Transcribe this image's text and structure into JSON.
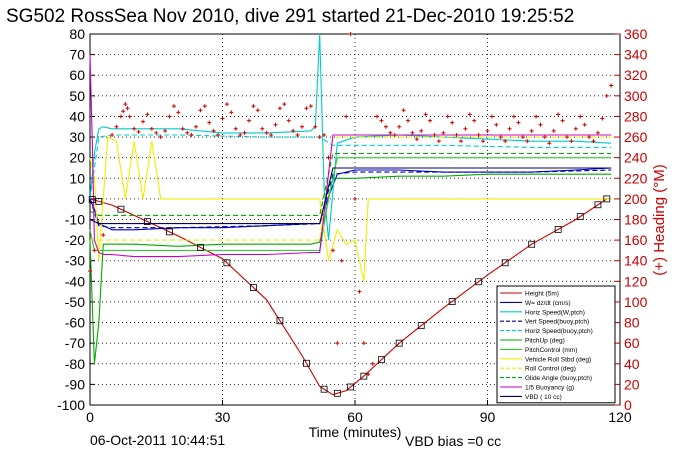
{
  "chart_data": {
    "type": "line",
    "title": "SG502 RossSea Nov 2010, dive 291 started 21-Dec-2010 19:25:52",
    "xlabel": "Time (minutes)",
    "ylabel_right": "(+) Heading (°M)",
    "footer_date": "06-Oct-2011 10:44:51",
    "footer_vbd": "VBD bias =0 cc",
    "xlim": [
      0,
      120
    ],
    "ylim": [
      -100,
      80
    ],
    "y2lim": [
      0,
      360
    ],
    "xticks": [
      0,
      30,
      60,
      90,
      120
    ],
    "yticks": [
      -100,
      -90,
      -80,
      -70,
      -60,
      -50,
      -40,
      -30,
      -20,
      -10,
      0,
      10,
      20,
      30,
      40,
      50,
      60,
      70,
      80
    ],
    "y2ticks": [
      0,
      20,
      40,
      60,
      80,
      100,
      120,
      140,
      160,
      180,
      200,
      220,
      240,
      260,
      280,
      300,
      320,
      340,
      360
    ],
    "grid": true,
    "legend_position": "bottom-right",
    "series": [
      {
        "name": "Height (5m)",
        "color": "#cc0000",
        "style": "solid",
        "x": [
          0,
          5,
          10,
          20,
          30,
          40,
          48,
          52,
          55,
          58,
          62,
          70,
          80,
          90,
          100,
          110,
          117,
          118
        ],
        "y": [
          0,
          -3,
          -8,
          -18,
          -29,
          -49,
          -76,
          -91,
          -95,
          -93,
          -86,
          -70,
          -53,
          -37,
          -22,
          -10,
          0,
          0
        ]
      },
      {
        "name": "W= dz/dt (cm/s)",
        "color": "#0000cc",
        "style": "solid",
        "x": [
          0,
          1,
          2,
          5,
          10,
          20,
          30,
          40,
          50,
          52,
          54,
          56,
          60,
          70,
          80,
          90,
          100,
          110,
          118
        ],
        "y": [
          0,
          -5,
          -12,
          -15,
          -15,
          -14,
          -14,
          -13,
          -12,
          -12,
          1,
          12,
          14,
          14,
          13,
          13,
          13,
          14,
          15
        ]
      },
      {
        "name": "Horiz Speed(W,ptch)",
        "color": "#00cccc",
        "style": "solid",
        "x": [
          0,
          1,
          2,
          3,
          5,
          10,
          20,
          30,
          40,
          50,
          51,
          52,
          53,
          54,
          56,
          60,
          70,
          80,
          90,
          100,
          110,
          118
        ],
        "y": [
          0,
          22,
          34,
          35,
          34,
          34,
          34,
          32,
          32,
          33,
          35,
          80,
          5,
          -20,
          27,
          30,
          31,
          30,
          29,
          28,
          28,
          27
        ]
      },
      {
        "name": "Vert Speed(buoy,ptch)",
        "color": "#000099",
        "style": "dashed",
        "x": [
          0,
          2,
          5,
          20,
          40,
          52,
          55,
          60,
          80,
          100,
          118
        ],
        "y": [
          0,
          -13,
          -14,
          -14,
          -13,
          -12,
          12,
          13,
          13,
          13,
          14
        ]
      },
      {
        "name": "Horiz Speed(buoy,ptch)",
        "color": "#00cccc",
        "style": "dashed",
        "x": [
          0,
          2,
          5,
          20,
          40,
          52,
          55,
          60,
          80,
          100,
          118
        ],
        "y": [
          0,
          30,
          31,
          31,
          30,
          30,
          26,
          26,
          26,
          25,
          25
        ]
      },
      {
        "name": "PitchUp (deg)",
        "color": "#00aa00",
        "style": "solid",
        "x": [
          0,
          1,
          2,
          3,
          5,
          10,
          20,
          30,
          40,
          50,
          52,
          55,
          60,
          70,
          80,
          90,
          100,
          110,
          118
        ],
        "y": [
          -20,
          -80,
          -60,
          -22,
          -22,
          -22,
          -23,
          -22,
          -22,
          -22,
          -21,
          10,
          10,
          11,
          11,
          12,
          12,
          12,
          12
        ]
      },
      {
        "name": "PitchControl (mm)",
        "color": "#33cc33",
        "style": "solid",
        "x": [
          0,
          1,
          3,
          5,
          52,
          54,
          56,
          60,
          80,
          100,
          118
        ],
        "y": [
          -15,
          -25,
          -25,
          -25,
          -25,
          0,
          20,
          20,
          20,
          20,
          20
        ]
      },
      {
        "name": "Vehicle Roll Stbd (deg)",
        "color": "#eeee00",
        "style": "solid",
        "x": [
          0,
          1,
          2,
          4,
          6,
          8,
          10,
          12,
          14,
          16,
          52,
          54,
          56,
          58,
          60,
          62,
          63,
          64,
          66,
          70,
          80,
          90,
          100,
          110,
          118
        ],
        "y": [
          20,
          10,
          -30,
          30,
          28,
          0,
          28,
          0,
          28,
          0,
          0,
          -30,
          -15,
          -22,
          -20,
          -40,
          0,
          0,
          0,
          0,
          0,
          0,
          0,
          0,
          0
        ]
      },
      {
        "name": "Roll Control (deg)",
        "color": "#eeee00",
        "style": "dashed",
        "x": [
          0,
          52,
          55,
          118
        ],
        "y": [
          -20,
          -20,
          30,
          30
        ]
      },
      {
        "name": "Glide Angle (buoy,ptch)",
        "color": "#00aa00",
        "style": "dashed",
        "x": [
          0,
          2,
          5,
          20,
          40,
          52,
          55,
          60,
          80,
          100,
          118
        ],
        "y": [
          -6,
          -8,
          -8,
          -8,
          -8,
          -8,
          22,
          22,
          22,
          22,
          22
        ]
      },
      {
        "name": "1/5 Buoyancy (g)",
        "color": "#cc00cc",
        "style": "solid",
        "x": [
          0,
          0.5,
          1,
          2,
          3,
          5,
          10,
          20,
          30,
          40,
          50,
          52,
          55,
          60,
          70,
          80,
          90,
          100,
          110,
          118
        ],
        "y": [
          70,
          30,
          -20,
          -26,
          -27,
          -27,
          -28,
          -28,
          -27,
          -27,
          -26,
          -26,
          31,
          31,
          31,
          31,
          31,
          31,
          31,
          31
        ]
      },
      {
        "name": "VBD ( 10 cc)",
        "color": "#000066",
        "style": "solid",
        "x": [
          0,
          2,
          52,
          55,
          118
        ],
        "y": [
          -10,
          -12,
          -12,
          15,
          15
        ]
      }
    ],
    "heading_series": {
      "name": "(+) Heading",
      "color": "#cc0000",
      "marker": "+",
      "axis": "right",
      "x": [
        0,
        1,
        3,
        5,
        6,
        7,
        7.5,
        8,
        8.5,
        9,
        10,
        11,
        12,
        13,
        14,
        15,
        16,
        17,
        18,
        19,
        20,
        21,
        22,
        23,
        24,
        25,
        26,
        27,
        28,
        29,
        30,
        31,
        32,
        33,
        34,
        35,
        36,
        37,
        38,
        39,
        40,
        41,
        42,
        43,
        44,
        45,
        46,
        47,
        48,
        49,
        50,
        51,
        52,
        53,
        54,
        55,
        56,
        57,
        58,
        59,
        60,
        61,
        62,
        63,
        64,
        65,
        66,
        67,
        68,
        69,
        70,
        71,
        72,
        73,
        74,
        75,
        76,
        77,
        78,
        79,
        80,
        81,
        82,
        83,
        84,
        85,
        86,
        87,
        88,
        89,
        90,
        91,
        92,
        93,
        94,
        95,
        96,
        97,
        98,
        99,
        100,
        101,
        102,
        103,
        104,
        105,
        106,
        107,
        108,
        109,
        110,
        111,
        112,
        113,
        114,
        115,
        116,
        117,
        118
      ],
      "y": [
        130,
        150,
        165,
        262,
        270,
        280,
        285,
        292,
        288,
        280,
        268,
        265,
        275,
        282,
        268,
        264,
        260,
        266,
        280,
        290,
        284,
        268,
        264,
        262,
        270,
        286,
        290,
        274,
        266,
        262,
        278,
        292,
        284,
        268,
        262,
        264,
        276,
        290,
        286,
        268,
        264,
        262,
        272,
        288,
        292,
        276,
        266,
        262,
        270,
        288,
        290,
        270,
        260,
        262,
        240,
        150,
        60,
        140,
        280,
        360,
        200,
        110,
        60,
        30,
        40,
        280,
        276,
        270,
        264,
        262,
        270,
        286,
        276,
        264,
        258,
        266,
        282,
        276,
        262,
        256,
        264,
        280,
        274,
        262,
        256,
        268,
        282,
        276,
        262,
        256,
        266,
        280,
        272,
        260,
        256,
        268,
        280,
        274,
        260,
        256,
        266,
        280,
        272,
        260,
        254,
        266,
        282,
        276,
        260,
        256,
        268,
        280,
        272,
        260,
        256,
        264,
        278,
        300,
        310
      ]
    },
    "height_markers_x": [
      0.5,
      2,
      7,
      13,
      18,
      25,
      31,
      37,
      43,
      49,
      53,
      56,
      59,
      62,
      66,
      70,
      75,
      82,
      88,
      94,
      100,
      106,
      111,
      115,
      117
    ]
  }
}
